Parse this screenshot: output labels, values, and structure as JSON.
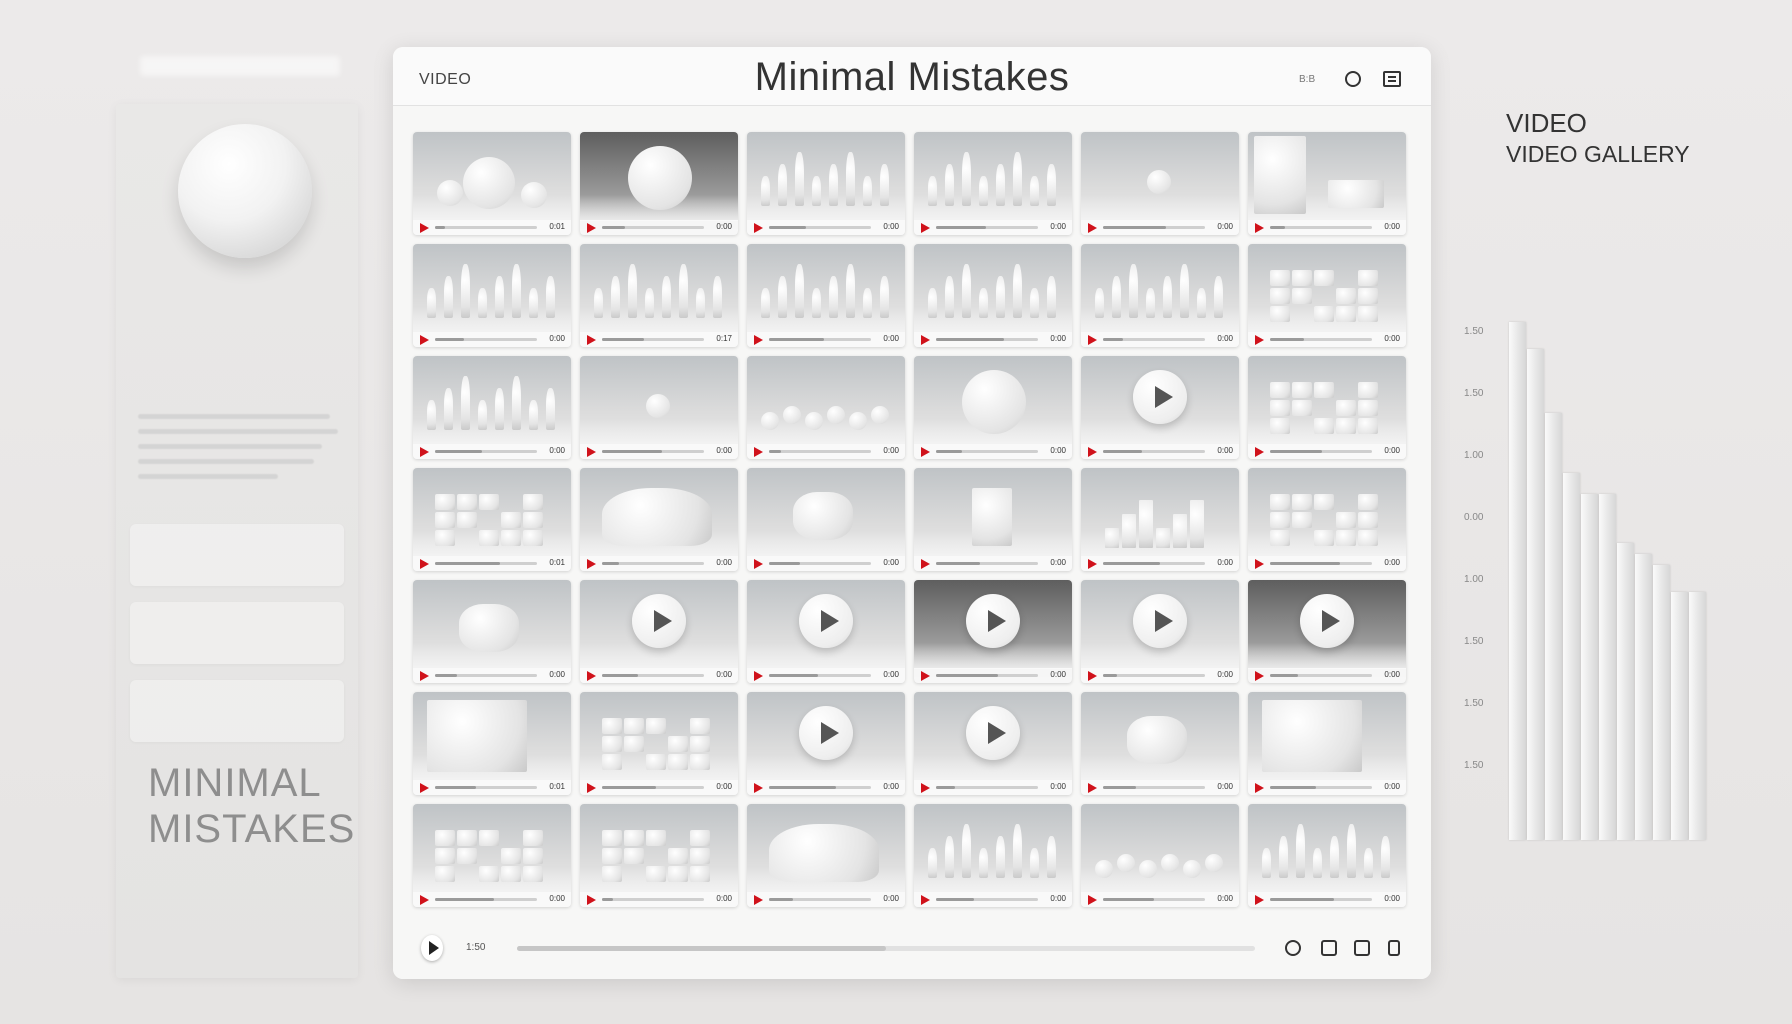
{
  "window": {
    "nav_label": "VIDEO",
    "title": "Minimal Mistakes",
    "status_text": "B:B",
    "search_icon": "search-icon",
    "menu_icon": "menu-icon"
  },
  "side_panel": {
    "brand_line1": "MINIMAL",
    "brand_line2": "MISTAKES"
  },
  "right_heading": {
    "line1": "VIDEO",
    "line2": "VIDEO GALLERY"
  },
  "colors": {
    "accent": "#d0121b",
    "background": "#e9e8e7",
    "panel": "#f7f7f6"
  },
  "thumbnails": [
    {
      "scene": "spheres",
      "dur": "0:01"
    },
    {
      "scene": "sphere-dark",
      "dur": "0:00"
    },
    {
      "scene": "grass-arch",
      "dur": "0:00"
    },
    {
      "scene": "grass-ring",
      "dur": "0:00"
    },
    {
      "scene": "horizon-ball",
      "dur": "0:00"
    },
    {
      "scene": "lines-box",
      "dur": "0:00"
    },
    {
      "scene": "spires",
      "dur": "0:00"
    },
    {
      "scene": "spires",
      "dur": "0:17"
    },
    {
      "scene": "spires",
      "dur": "0:00"
    },
    {
      "scene": "crystals",
      "dur": "0:00"
    },
    {
      "scene": "crystals",
      "dur": "0:00"
    },
    {
      "scene": "blocks-ball",
      "dur": "0:00"
    },
    {
      "scene": "spires",
      "dur": "0:00"
    },
    {
      "scene": "egg",
      "dur": "0:00"
    },
    {
      "scene": "spheres-row",
      "dur": "0:00"
    },
    {
      "scene": "sphere-big",
      "dur": "0:00"
    },
    {
      "scene": "play-ball",
      "dur": "0:00"
    },
    {
      "scene": "blocks",
      "dur": "0:00"
    },
    {
      "scene": "cubes",
      "dur": "0:01"
    },
    {
      "scene": "cloud",
      "dur": "0:00"
    },
    {
      "scene": "cloud-ball",
      "dur": "0:00"
    },
    {
      "scene": "tower",
      "dur": "0:00"
    },
    {
      "scene": "columns",
      "dur": "0:00"
    },
    {
      "scene": "blocks",
      "dur": "0:00"
    },
    {
      "scene": "knot",
      "dur": "0:00"
    },
    {
      "scene": "play-ball",
      "dur": "0:00"
    },
    {
      "scene": "play-ball",
      "dur": "0:00"
    },
    {
      "scene": "play-ball-dark",
      "dur": "0:00"
    },
    {
      "scene": "play-ball",
      "dur": "0:00"
    },
    {
      "scene": "play-ball-dark",
      "dur": "0:00"
    },
    {
      "scene": "grid-glass",
      "dur": "0:01"
    },
    {
      "scene": "cube-wall",
      "dur": "0:00"
    },
    {
      "scene": "play-ball",
      "dur": "0:00"
    },
    {
      "scene": "play-ball",
      "dur": "0:00"
    },
    {
      "scene": "rocks",
      "dur": "0:00"
    },
    {
      "scene": "glass-box",
      "dur": "0:00"
    },
    {
      "scene": "cube-wall",
      "dur": "0:00"
    },
    {
      "scene": "cube-wall",
      "dur": "0:00"
    },
    {
      "scene": "cloud",
      "dur": "0:00"
    },
    {
      "scene": "crystals",
      "dur": "0:00"
    },
    {
      "scene": "spheres-row",
      "dur": "0:00"
    },
    {
      "scene": "crystals",
      "dur": "0:00"
    }
  ],
  "player": {
    "time": "1:50",
    "progress": 0.5,
    "icons": [
      "volume-icon",
      "like-icon",
      "chat-icon",
      "fullscreen-icon"
    ]
  },
  "chart_data": {
    "type": "bar",
    "tick_labels": [
      "1.50",
      "1.50",
      "1.00",
      "0.00",
      "1.00",
      "1.50",
      "1.50",
      "1.50"
    ],
    "values": [
      0.96,
      0.91,
      0.79,
      0.68,
      0.64,
      0.64,
      0.55,
      0.53,
      0.51,
      0.46,
      0.46
    ],
    "ylim": [
      0,
      1
    ],
    "grid": false
  }
}
